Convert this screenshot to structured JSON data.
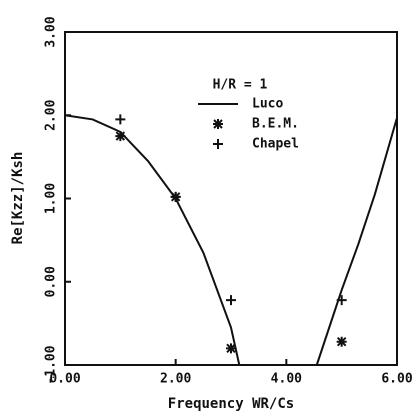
{
  "chart_data": {
    "type": "line",
    "xlabel": "Frequency WR/Cs",
    "ylabel": "Re[Kzz]/Ksh",
    "legend_title": "H/R = 1",
    "xlim": [
      0,
      6
    ],
    "ylim": [
      -1,
      3
    ],
    "xticks": [
      {
        "value": 0,
        "label": "0.00"
      },
      {
        "value": 2,
        "label": "2.00"
      },
      {
        "value": 4,
        "label": "4.00"
      },
      {
        "value": 6,
        "label": "6.00"
      }
    ],
    "yticks": [
      {
        "value": -1,
        "label": "-1.00"
      },
      {
        "value": 0,
        "label": "0.00"
      },
      {
        "value": 1,
        "label": "1.00"
      },
      {
        "value": 2,
        "label": "2.00"
      },
      {
        "value": 3,
        "label": "3.00"
      }
    ],
    "series": [
      {
        "name": "Luco",
        "color": "#111111",
        "marker": "line",
        "x": [
          0,
          0.5,
          1,
          1.5,
          2,
          2.5,
          3,
          3.15,
          3.8,
          4.55,
          4.8,
          5,
          5.3,
          5.6,
          6
        ],
        "values": [
          2.0,
          1.95,
          1.8,
          1.45,
          1.0,
          0.35,
          -0.55,
          -1,
          null,
          -1,
          -0.5,
          -0.1,
          0.45,
          1.05,
          1.97
        ]
      },
      {
        "name": "B.E.M.",
        "color": "#111111",
        "marker": "star",
        "x": [
          1,
          2,
          3,
          5
        ],
        "values": [
          1.75,
          1.02,
          -0.8,
          -0.72
        ]
      },
      {
        "name": "Chapel",
        "color": "#111111",
        "marker": "plus",
        "x": [
          1,
          2,
          3,
          5
        ],
        "values": [
          1.95,
          1.02,
          -0.22,
          -0.22
        ]
      }
    ]
  }
}
